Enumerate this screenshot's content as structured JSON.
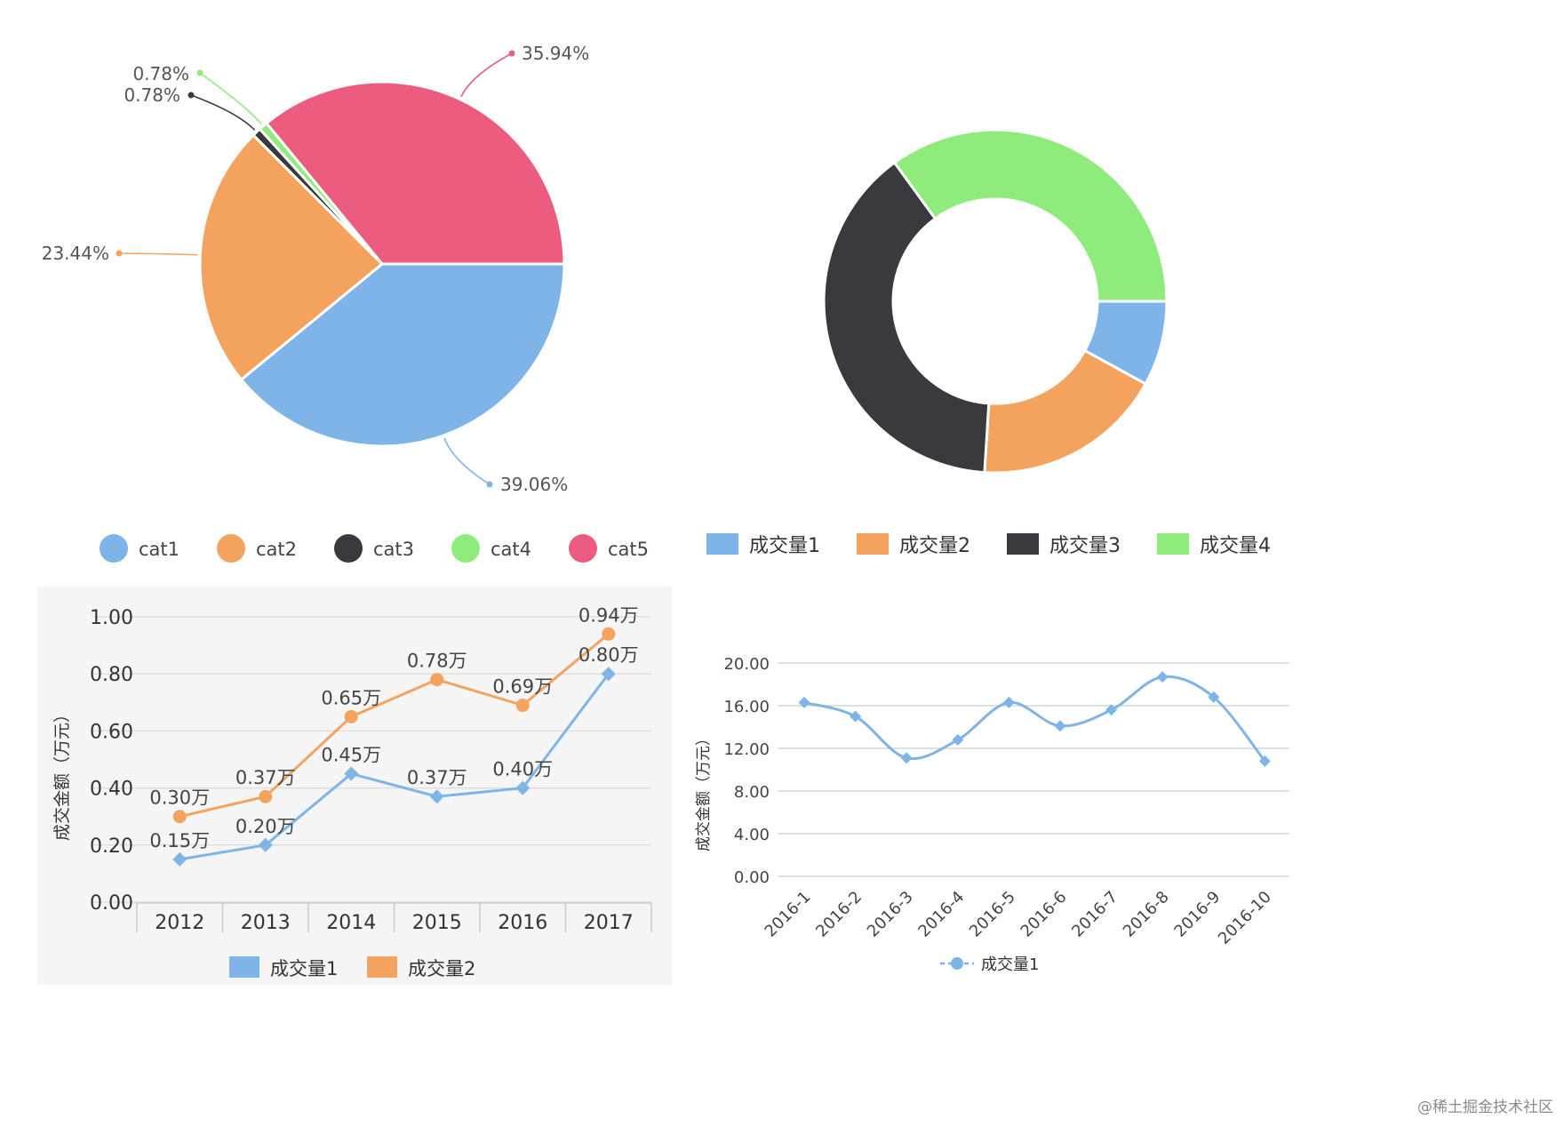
{
  "watermark": "@稀土掘金技术社区",
  "chart_data": [
    {
      "type": "pie",
      "slices": [
        {
          "name": "cat1",
          "value": 39.06,
          "label": "39.06%",
          "color": "#7EB4E8"
        },
        {
          "name": "cat2",
          "value": 23.44,
          "label": "23.44%",
          "color": "#F3A35E"
        },
        {
          "name": "cat3",
          "value": 0.78,
          "label": "0.78%",
          "color": "#3A3A3E"
        },
        {
          "name": "cat4",
          "value": 0.78,
          "label": "0.78%",
          "color": "#8FEB7C"
        },
        {
          "name": "cat5",
          "value": 35.94,
          "label": "35.94%",
          "color": "#EB5C7E"
        }
      ],
      "legend": [
        "cat1",
        "cat2",
        "cat3",
        "cat4",
        "cat5"
      ]
    },
    {
      "type": "pie",
      "subtype": "donut",
      "slices": [
        {
          "name": "成交量1",
          "value": 8,
          "color": "#7EB4E8"
        },
        {
          "name": "成交量2",
          "value": 18,
          "color": "#F3A35E"
        },
        {
          "name": "成交量3",
          "value": 39,
          "color": "#3A3A3E"
        },
        {
          "name": "成交量4",
          "value": 35,
          "color": "#8FEB7C"
        }
      ],
      "legend": [
        "成交量1",
        "成交量2",
        "成交量3",
        "成交量4"
      ]
    },
    {
      "type": "line",
      "categories": [
        "2012",
        "2013",
        "2014",
        "2015",
        "2016",
        "2017"
      ],
      "series": [
        {
          "name": "成交量1",
          "color": "#7EB4E8",
          "marker": "diamond",
          "values": [
            0.15,
            0.2,
            0.45,
            0.37,
            0.4,
            0.8
          ],
          "labels": [
            "0.15万",
            "0.20万",
            "0.45万",
            "0.37万",
            "0.40万",
            "0.80万"
          ]
        },
        {
          "name": "成交量2",
          "color": "#F3A35E",
          "marker": "circle",
          "values": [
            0.3,
            0.37,
            0.65,
            0.78,
            0.69,
            0.94
          ],
          "labels": [
            "0.30万",
            "0.37万",
            "0.65万",
            "0.78万",
            "0.69万",
            "0.94万"
          ]
        }
      ],
      "ylabel": "成交金额（万元）",
      "ylim": [
        0,
        1.0
      ],
      "yticks": [
        "0.00",
        "0.20",
        "0.40",
        "0.60",
        "0.80",
        "1.00"
      ],
      "grid": true,
      "legend": [
        "成交量1",
        "成交量2"
      ]
    },
    {
      "type": "line",
      "smooth": true,
      "categories": [
        "2016-1",
        "2016-2",
        "2016-3",
        "2016-4",
        "2016-5",
        "2016-6",
        "2016-7",
        "2016-8",
        "2016-9",
        "2016-10"
      ],
      "series": [
        {
          "name": "成交量1",
          "color": "#7EB4E8",
          "marker": "diamond",
          "values": [
            16.3,
            15.0,
            11.1,
            12.8,
            16.3,
            14.1,
            15.6,
            18.7,
            16.8,
            10.8
          ]
        }
      ],
      "ylabel": "成交金额（万元）",
      "ylim": [
        0,
        20
      ],
      "yticks": [
        "0.00",
        "4.00",
        "8.00",
        "12.00",
        "16.00",
        "20.00"
      ],
      "grid": true,
      "legend": [
        "成交量1"
      ]
    }
  ]
}
